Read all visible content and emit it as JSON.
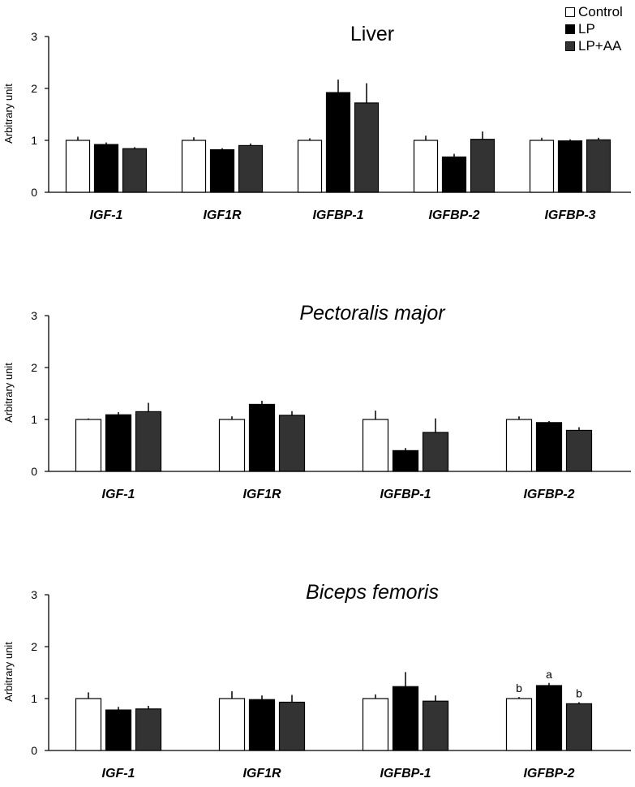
{
  "legend": {
    "items": [
      {
        "label": "Control",
        "color": "#ffffff"
      },
      {
        "label": "LP",
        "color": "#000000"
      },
      {
        "label": "LP+AA",
        "color": "#333333"
      }
    ]
  },
  "chart_data": [
    {
      "type": "bar",
      "title": "Liver",
      "title_italic": false,
      "ylabel": "Arbitrary unit",
      "ylim": [
        0,
        3
      ],
      "yticks": [
        0,
        1,
        2,
        3
      ],
      "categories": [
        "IGF-1",
        "IGF1R",
        "IGFBP-1",
        "IGFBP-2",
        "IGFBP-3"
      ],
      "series": [
        {
          "name": "Control",
          "values": [
            1.0,
            1.0,
            1.0,
            1.0,
            1.0
          ],
          "errors": [
            0.07,
            0.06,
            0.04,
            0.09,
            0.05
          ]
        },
        {
          "name": "LP",
          "values": [
            0.92,
            0.82,
            1.92,
            0.68,
            0.99
          ],
          "errors": [
            0.04,
            0.03,
            0.25,
            0.06,
            0.03
          ]
        },
        {
          "name": "LP+AA",
          "values": [
            0.84,
            0.9,
            1.72,
            1.02,
            1.01
          ],
          "errors": [
            0.03,
            0.04,
            0.38,
            0.15,
            0.04
          ]
        }
      ],
      "annotations": []
    },
    {
      "type": "bar",
      "title": "Pectoralis major",
      "title_italic": true,
      "ylabel": "Arbitrary unit",
      "ylim": [
        0,
        3
      ],
      "yticks": [
        0,
        1,
        2,
        3
      ],
      "categories": [
        "IGF-1",
        "IGF1R",
        "IGFBP-1",
        "IGFBP-2"
      ],
      "series": [
        {
          "name": "Control",
          "values": [
            1.0,
            1.0,
            1.0,
            1.0
          ],
          "errors": [
            0.02,
            0.06,
            0.17,
            0.06
          ]
        },
        {
          "name": "LP",
          "values": [
            1.09,
            1.29,
            0.4,
            0.94
          ],
          "errors": [
            0.05,
            0.07,
            0.05,
            0.03
          ]
        },
        {
          "name": "LP+AA",
          "values": [
            1.15,
            1.08,
            0.75,
            0.79
          ],
          "errors": [
            0.17,
            0.08,
            0.27,
            0.06
          ]
        }
      ],
      "annotations": []
    },
    {
      "type": "bar",
      "title": "Biceps femoris",
      "title_italic": true,
      "ylabel": "Arbitrary unit",
      "ylim": [
        0,
        3
      ],
      "yticks": [
        0,
        1,
        2,
        3
      ],
      "categories": [
        "IGF-1",
        "IGF1R",
        "IGFBP-1",
        "IGFBP-2"
      ],
      "series": [
        {
          "name": "Control",
          "values": [
            1.0,
            1.0,
            1.0,
            1.0
          ],
          "errors": [
            0.12,
            0.14,
            0.08,
            0.03
          ]
        },
        {
          "name": "LP",
          "values": [
            0.78,
            0.98,
            1.23,
            1.25
          ],
          "errors": [
            0.06,
            0.08,
            0.28,
            0.05
          ]
        },
        {
          "name": "LP+AA",
          "values": [
            0.8,
            0.93,
            0.95,
            0.9
          ],
          "errors": [
            0.06,
            0.14,
            0.11,
            0.03
          ]
        }
      ],
      "annotations": [
        {
          "category": 3,
          "series": 0,
          "text": "b"
        },
        {
          "category": 3,
          "series": 1,
          "text": "a"
        },
        {
          "category": 3,
          "series": 2,
          "text": "b"
        }
      ]
    }
  ]
}
